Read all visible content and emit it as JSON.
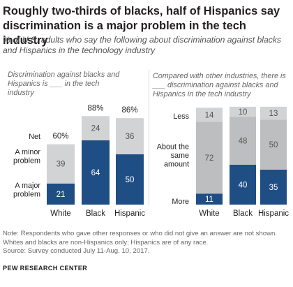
{
  "title": "Roughly two-thirds of blacks, half of Hispanics say discrimination is a major problem in the tech industry",
  "subtitle": "% of U.S. adults who say the following about discrimination against blacks and Hispanics in the technology industry",
  "colors": {
    "dark": "#1f4e85",
    "light": "#d1d3d4",
    "mid": "#bcbec0"
  },
  "chart_data": [
    {
      "type": "bar",
      "stacked": true,
      "subtitle": "Discrimination against blacks and Hispanics is ___ in the tech industry",
      "categories": [
        "White",
        "Black",
        "Hispanic"
      ],
      "net_label": "Net",
      "net_values": [
        "60%",
        "88%",
        "86%"
      ],
      "series": [
        {
          "name": "A major problem",
          "values": [
            21,
            64,
            50
          ]
        },
        {
          "name": "A minor problem",
          "values": [
            39,
            24,
            36
          ]
        }
      ]
    },
    {
      "type": "bar",
      "stacked": true,
      "subtitle": "Compared with other industries, there is ___ discrimination against blacks and Hispanics in the tech industry",
      "categories": [
        "White",
        "Black",
        "Hispanic"
      ],
      "series": [
        {
          "name": "More",
          "values": [
            11,
            40,
            35
          ]
        },
        {
          "name": "About the same amount",
          "values": [
            72,
            48,
            50
          ]
        },
        {
          "name": "Less",
          "values": [
            14,
            10,
            13
          ]
        }
      ]
    }
  ],
  "note": "Note: Respondents who gave other responses or who did not give an answer are not shown. Whites and blacks are non-Hispanics only; Hispanics are of any race.",
  "source": "Source: Survey conducted July 11-Aug. 10, 2017.",
  "brand": "PEW RESEARCH CENTER"
}
